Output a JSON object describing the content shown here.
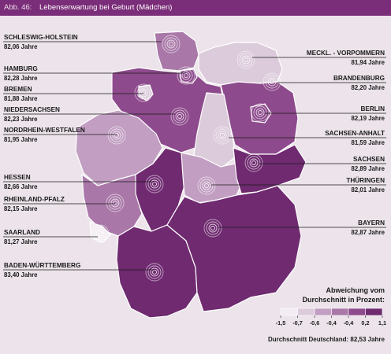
{
  "header": {
    "figure_number": "Abb. 46:",
    "title": "Lebenserwartung bei Geburt (Mädchen)"
  },
  "colors": {
    "header_bg": "#7a2d78",
    "scale": [
      "#f3ecf2",
      "#dccbdb",
      "#c29fc2",
      "#a978a8",
      "#8d4a8c",
      "#6f2a70"
    ]
  },
  "states": [
    {
      "id": "sh",
      "name": "SCHLESWIG-HOLSTEIN",
      "value": "82,06 Jahre",
      "class": 3
    },
    {
      "id": "mv",
      "name": "MECKL. - VORPOMMERN",
      "value": "81,94 Jahre",
      "class": 1
    },
    {
      "id": "hh",
      "name": "HAMBURG",
      "value": "82,28 Jahre",
      "class": 4
    },
    {
      "id": "bb",
      "name": "BRANDENBURG",
      "value": "82,20 Jahre",
      "class": 4
    },
    {
      "id": "hb",
      "name": "BREMEN",
      "value": "81,88 Jahre",
      "class": 1
    },
    {
      "id": "ni",
      "name": "NIEDERSACHSEN",
      "value": "82,23 Jahre",
      "class": 4
    },
    {
      "id": "be",
      "name": "BERLIN",
      "value": "82,19 Jahre",
      "class": 4
    },
    {
      "id": "nw",
      "name": "NORDRHEIN-WESTFALEN",
      "value": "81,95 Jahre",
      "class": 2
    },
    {
      "id": "st",
      "name": "SACHSEN-ANHALT",
      "value": "81,59 Jahre",
      "class": 1
    },
    {
      "id": "sn",
      "name": "SACHSEN",
      "value": "82,89 Jahre",
      "class": 5
    },
    {
      "id": "he",
      "name": "HESSEN",
      "value": "82,66 Jahre",
      "class": 5
    },
    {
      "id": "th",
      "name": "THÜRINGEN",
      "value": "82,01 Jahre",
      "class": 2
    },
    {
      "id": "rp",
      "name": "RHEINLAND-PFALZ",
      "value": "82,15 Jahre",
      "class": 3
    },
    {
      "id": "by",
      "name": "BAYERN",
      "value": "82,87 Jahre",
      "class": 5
    },
    {
      "id": "sl",
      "name": "SAARLAND",
      "value": "81,27 Jahre",
      "class": 0
    },
    {
      "id": "bw",
      "name": "BADEN-WÜRTTEMBERG",
      "value": "83,40 Jahre",
      "class": 5
    }
  ],
  "legend": {
    "title_line1": "Abweichung vom",
    "title_line2": "Durchschnitt in Prozent:",
    "ticks": [
      "-1,5",
      "-0,7",
      "-0,6",
      "-0,4",
      "-0,4",
      "0,2",
      "1,1"
    ],
    "average": "Durchschnitt Deutschland: 82,53 Jahre"
  }
}
